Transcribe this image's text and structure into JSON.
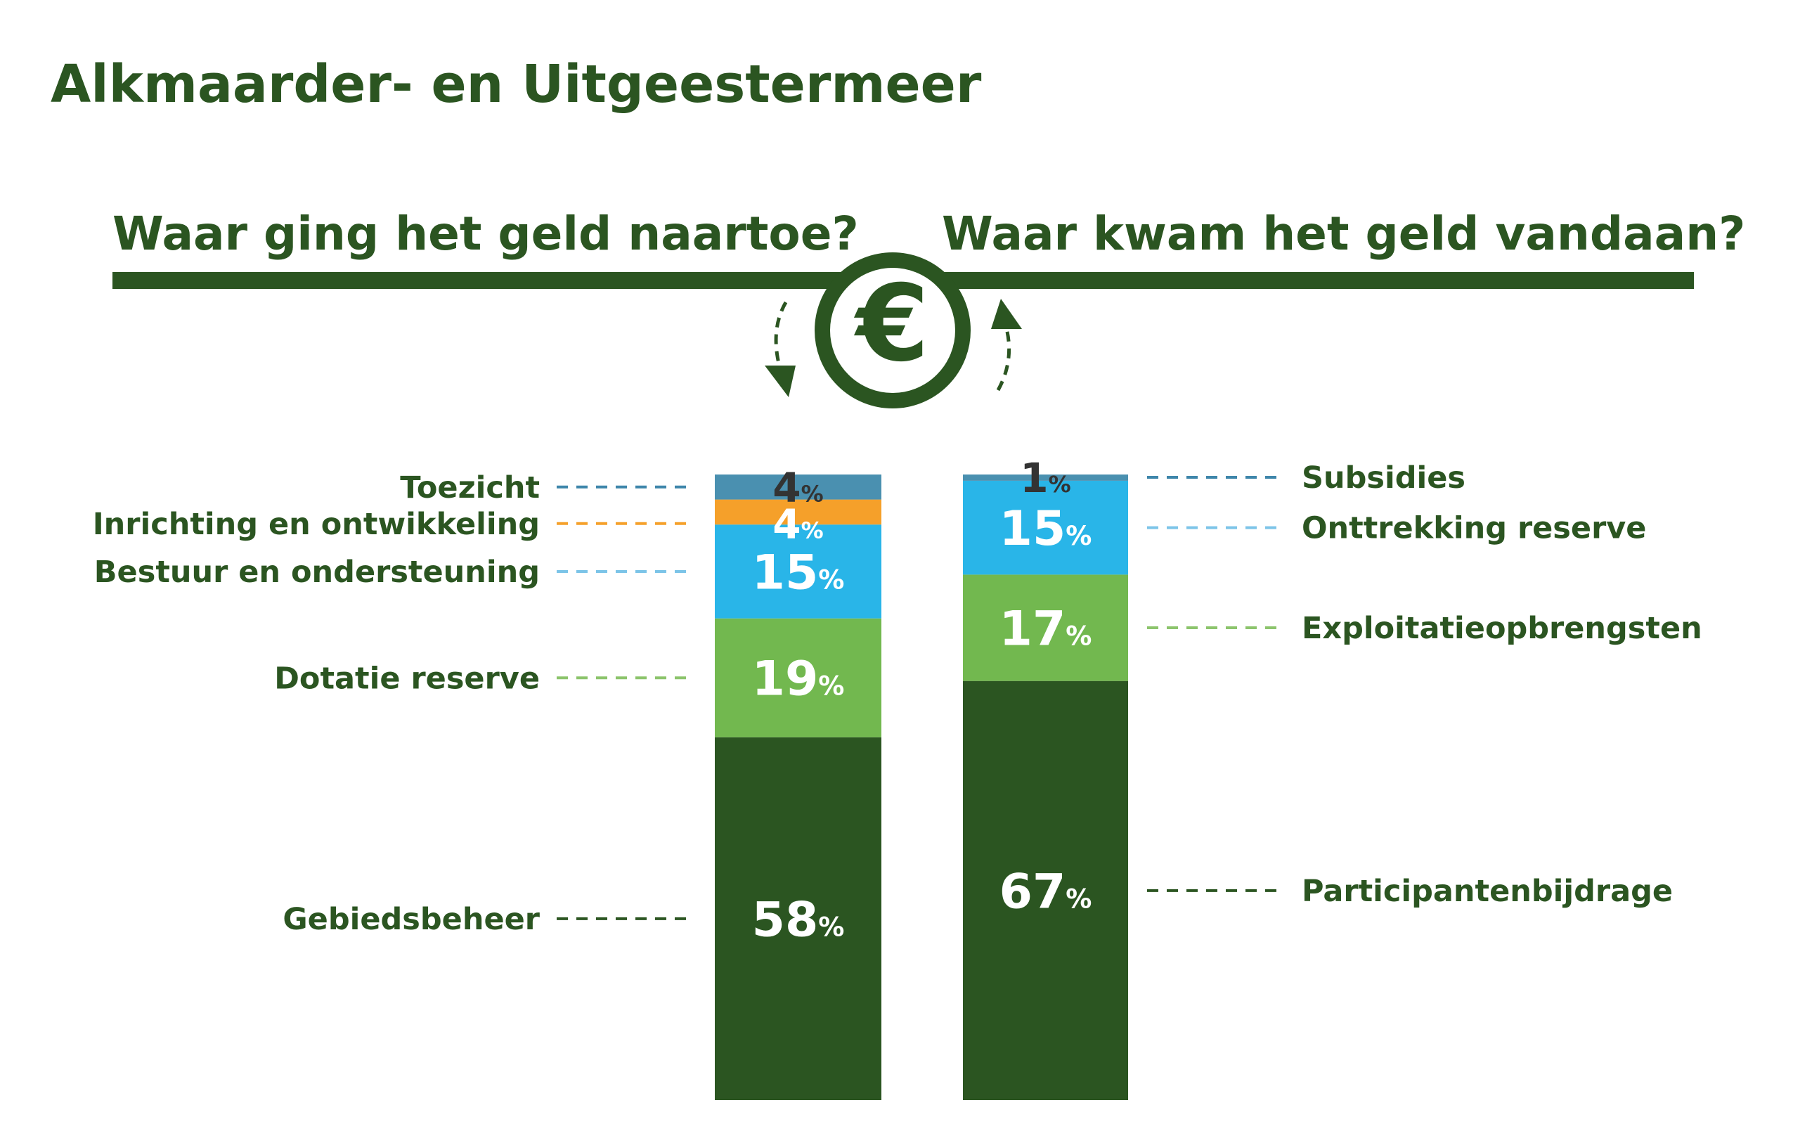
{
  "title": "Alkmaarder- en Uitgeestermeer",
  "colors": {
    "primary": "#2b5521",
    "toezicht": "#4a90b0",
    "inrichting": "#f5a02a",
    "bestuur": "#29b5e8",
    "dotatie": "#72b84f",
    "gebiedsbeheer": "#2b5521",
    "subsidies": "#4a90b0",
    "onttrekking": "#29b5e8",
    "exploitatie": "#72b84f",
    "participanten": "#2b5521",
    "dark_label": "#333333",
    "white": "#ffffff"
  },
  "header": {
    "left_question": "Waar ging het geld naartoe?",
    "right_question": "Waar kwam het geld vandaan?",
    "currency_symbol": "€"
  },
  "chart_data": [
    {
      "type": "bar",
      "title": "Waar ging het geld naartoe?",
      "stacked": true,
      "unit": "%",
      "segments": [
        {
          "label": "Gebiedsbeheer",
          "value": 58,
          "value_label": "58"
        },
        {
          "label": "Dotatie reserve",
          "value": 19,
          "value_label": "19"
        },
        {
          "label": "Bestuur en ondersteuning",
          "value": 15,
          "value_label": "15"
        },
        {
          "label": "Inrichting en ontwikkeling",
          "value": 4,
          "value_label": "4"
        },
        {
          "label": "Toezicht",
          "value": 4,
          "value_label": "4"
        }
      ]
    },
    {
      "type": "bar",
      "title": "Waar kwam het geld vandaan?",
      "stacked": true,
      "unit": "%",
      "segments": [
        {
          "label": "Participantenbijdrage",
          "value": 67,
          "value_label": "67"
        },
        {
          "label": "Exploitatieopbrengsten",
          "value": 17,
          "value_label": "17"
        },
        {
          "label": "Onttrekking reserve",
          "value": 15,
          "value_label": "15"
        },
        {
          "label": "Subsidies",
          "value": 1,
          "value_label": "1"
        }
      ]
    }
  ]
}
